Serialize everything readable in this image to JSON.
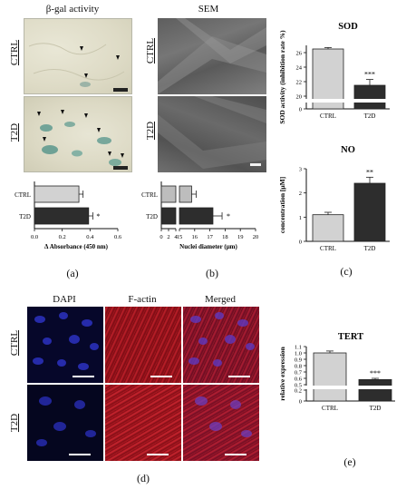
{
  "panel_a": {
    "title": "β-gal activity",
    "rows": [
      "CTRL",
      "T2D"
    ],
    "label": "(a)"
  },
  "panel_b": {
    "title": "SEM",
    "rows": [
      "CTRL",
      "T2D"
    ],
    "label": "(b)"
  },
  "panel_c": {
    "label": "(c)"
  },
  "panel_d": {
    "columns": [
      "DAPI",
      "F-actin",
      "Merged"
    ],
    "rows": [
      "CTRL",
      "T2D"
    ],
    "label": "(d)"
  },
  "panel_e": {
    "label": "(e)"
  },
  "colors": {
    "ctrl": "#d2d2d2",
    "t2d": "#2d2d2d",
    "dapi": "#1c1f9a",
    "factin": "#b4141e"
  },
  "chart_data": [
    {
      "id": "beta-gal",
      "type": "bar",
      "orientation": "horizontal",
      "categories": [
        "CTRL",
        "T2D"
      ],
      "values": [
        0.32,
        0.39
      ],
      "errors": [
        0.03,
        0.03
      ],
      "significance": [
        "",
        "*"
      ],
      "xlabel": "Δ Absorbance (450 nm)",
      "xlim": [
        0.0,
        0.6
      ],
      "xticks": [
        "0.0",
        "0.2",
        "0.4",
        "0.6"
      ]
    },
    {
      "id": "nuclei",
      "type": "bar",
      "orientation": "horizontal",
      "broken_axis": true,
      "categories": [
        "CTRL",
        "T2D"
      ],
      "values": [
        15.8,
        17.2
      ],
      "errors": [
        0.3,
        0.6
      ],
      "significance": [
        "",
        "*"
      ],
      "xlabel": "Nuclei diameter (μm)",
      "xticks": [
        "0",
        "2",
        "4",
        "15",
        "16",
        "17",
        "18",
        "19",
        "20"
      ]
    },
    {
      "id": "sod",
      "type": "bar",
      "broken_axis": true,
      "title": "SOD",
      "categories": [
        "CTRL",
        "T2D"
      ],
      "values": [
        26.5,
        21.5
      ],
      "errors": [
        0.2,
        0.8
      ],
      "significance": [
        "",
        "***"
      ],
      "ylabel": "SOD activity (inhibition rate %)",
      "yticks": [
        "0",
        "20",
        "22",
        "24",
        "26"
      ]
    },
    {
      "id": "no",
      "type": "bar",
      "title": "NO",
      "categories": [
        "CTRL",
        "T2D"
      ],
      "values": [
        1.1,
        2.4
      ],
      "errors": [
        0.1,
        0.25
      ],
      "significance": [
        "",
        "**"
      ],
      "ylabel": "concentration [μM]",
      "ylim": [
        0,
        3
      ],
      "yticks": [
        "0",
        "1",
        "2",
        "3"
      ]
    },
    {
      "id": "tert",
      "type": "bar",
      "broken_axis": true,
      "title": "TERT",
      "categories": [
        "CTRL",
        "T2D"
      ],
      "values": [
        1.0,
        0.58
      ],
      "errors": [
        0.03,
        0.02
      ],
      "significance": [
        "",
        "***"
      ],
      "ylabel": "relative expression",
      "yticks": [
        "0",
        "0.2",
        "0.5",
        "0.6",
        "0.7",
        "0.8",
        "0.9",
        "1.0",
        "1.1"
      ]
    }
  ]
}
